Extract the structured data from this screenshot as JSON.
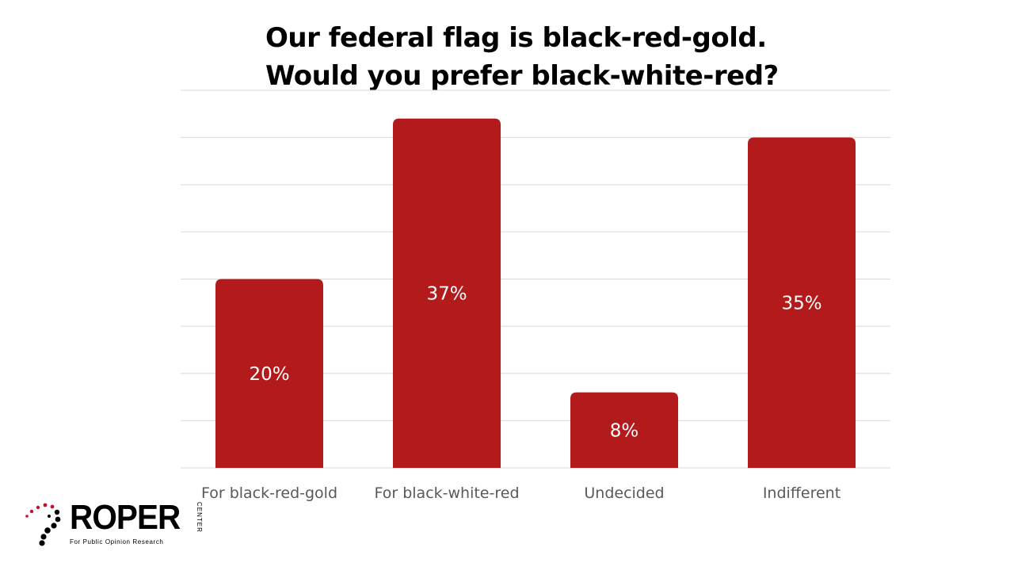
{
  "chart_data": {
    "type": "bar",
    "title": "Our federal flag is black-red-gold. Would you prefer black-white-red?",
    "title_lines": [
      "Our federal flag is black-red-gold.",
      "Would you prefer black-white-red?"
    ],
    "categories": [
      "For black-red-gold",
      "For black-white-red",
      "Undecided",
      "Indifferent"
    ],
    "values": [
      20,
      37,
      8,
      35
    ],
    "value_labels": [
      "20%",
      "37%",
      "8%",
      "35%"
    ],
    "unit": "%",
    "ylim": [
      0,
      40
    ],
    "grid": true,
    "legend": "none",
    "bar_color": "#B21A1C",
    "gridline_color": "#D9D9D9",
    "xlabel": "",
    "ylabel": ""
  },
  "logo": {
    "name": "ROPER",
    "side_text": "CENTER",
    "tagline": "For Public Opinion Research",
    "accent_color": "#C8102E"
  }
}
